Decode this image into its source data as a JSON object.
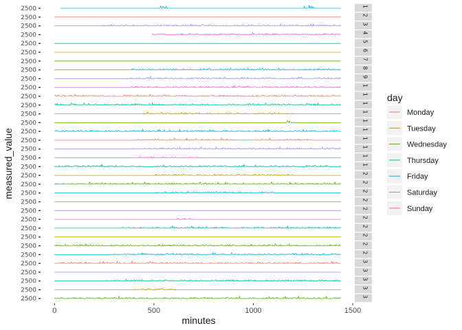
{
  "chart_data": {
    "type": "line",
    "xlabel": "minutes",
    "ylabel": "measured_value",
    "x_ticks": [
      0,
      500,
      1000,
      1500
    ],
    "xlim": [
      -60,
      1500
    ],
    "x_start": 0,
    "x_end": 1440,
    "y_tick_label": "2500",
    "grid": false,
    "facet_strip_labels": [
      "1",
      "2",
      "3",
      "4",
      "5",
      "6",
      "7",
      "8",
      "9",
      "1",
      "1",
      "1",
      "1",
      "1",
      "1",
      "1",
      "1",
      "1",
      "1",
      "2",
      "2",
      "2",
      "2",
      "2",
      "2",
      "2",
      "2",
      "2",
      "2",
      "3",
      "3",
      "3",
      "3",
      "3"
    ],
    "legend": {
      "title": "day",
      "placement": "right",
      "entries": [
        {
          "name": "Monday",
          "color": "#F8766D"
        },
        {
          "name": "Tuesday",
          "color": "#C49A00"
        },
        {
          "name": "Wednesday",
          "color": "#53B400"
        },
        {
          "name": "Thursday",
          "color": "#00C094"
        },
        {
          "name": "Friday",
          "color": "#00B6EB"
        },
        {
          "name": "Saturday",
          "color": "#A58AFF"
        },
        {
          "name": "Sunday",
          "color": "#FB61D7"
        }
      ]
    },
    "panels": [
      {
        "day": "Friday",
        "start": 30,
        "end": 1440,
        "activity": [
          [
            530,
            570,
            2
          ],
          [
            1250,
            1310,
            2
          ]
        ]
      },
      {
        "day": "Monday",
        "start": 0,
        "end": 1440,
        "activity": []
      },
      {
        "day": "Saturday",
        "start": 0,
        "end": 1440,
        "activity": [
          [
            200,
            1440,
            1
          ]
        ]
      },
      {
        "day": "Sunday",
        "start": 490,
        "end": 1440,
        "activity": [
          [
            490,
            1440,
            1
          ]
        ]
      },
      {
        "day": "Thursday",
        "start": 0,
        "end": 1440,
        "activity": []
      },
      {
        "day": "Tuesday",
        "start": 0,
        "end": 1440,
        "activity": []
      },
      {
        "day": "Wednesday",
        "start": 0,
        "end": 1440,
        "activity": []
      },
      {
        "day": "Friday",
        "start": 0,
        "end": 1440,
        "activity": [
          [
            380,
            1440,
            1
          ]
        ]
      },
      {
        "day": "Saturday",
        "start": 0,
        "end": 1440,
        "activity": [
          [
            380,
            1440,
            1
          ]
        ]
      },
      {
        "day": "Sunday",
        "start": 0,
        "end": 1440,
        "activity": [
          [
            380,
            1440,
            1
          ]
        ]
      },
      {
        "day": "Monday",
        "start": 0,
        "end": 1440,
        "activity": [
          [
            0,
            1440,
            1
          ]
        ]
      },
      {
        "day": "Thursday",
        "start": 0,
        "end": 1440,
        "activity": [
          [
            0,
            1440,
            1
          ]
        ]
      },
      {
        "day": "Tuesday",
        "start": 0,
        "end": 1440,
        "activity": [
          [
            440,
            1200,
            1
          ]
        ]
      },
      {
        "day": "Wednesday",
        "start": 0,
        "end": 1440,
        "activity": [
          [
            1170,
            1190,
            3
          ]
        ]
      },
      {
        "day": "Friday",
        "start": 0,
        "end": 1440,
        "activity": [
          [
            0,
            1440,
            1
          ]
        ]
      },
      {
        "day": "Monday",
        "start": 0,
        "end": 1440,
        "activity": [
          [
            420,
            1300,
            1
          ]
        ]
      },
      {
        "day": "Saturday",
        "start": 0,
        "end": 1440,
        "activity": [
          [
            380,
            1440,
            1
          ]
        ]
      },
      {
        "day": "Sunday",
        "start": 0,
        "end": 1440,
        "activity": [
          [
            420,
            720,
            1
          ]
        ]
      },
      {
        "day": "Thursday",
        "start": 0,
        "end": 1440,
        "activity": [
          [
            0,
            1440,
            1
          ]
        ]
      },
      {
        "day": "Tuesday",
        "start": 0,
        "end": 1440,
        "activity": [
          [
            500,
            1200,
            1
          ]
        ]
      },
      {
        "day": "Wednesday",
        "start": 0,
        "end": 1440,
        "activity": [
          [
            0,
            1440,
            1
          ]
        ]
      },
      {
        "day": "Friday",
        "start": 0,
        "end": 1440,
        "activity": [
          [
            500,
            1100,
            1
          ]
        ]
      },
      {
        "day": "Monday",
        "start": 0,
        "end": 1440,
        "activity": []
      },
      {
        "day": "Saturday",
        "start": 0,
        "end": 1440,
        "activity": []
      },
      {
        "day": "Sunday",
        "start": 0,
        "end": 1440,
        "activity": [
          [
            600,
            700,
            1
          ]
        ]
      },
      {
        "day": "Thursday",
        "start": 0,
        "end": 1440,
        "activity": [
          [
            320,
            1440,
            1
          ]
        ]
      },
      {
        "day": "Tuesday",
        "start": 0,
        "end": 1440,
        "activity": []
      },
      {
        "day": "Wednesday",
        "start": 0,
        "end": 1440,
        "activity": [
          [
            0,
            1440,
            1
          ]
        ]
      },
      {
        "day": "Friday",
        "start": 0,
        "end": 1440,
        "activity": [
          [
            300,
            1440,
            1
          ]
        ]
      },
      {
        "day": "Monday",
        "start": 0,
        "end": 1440,
        "activity": [
          [
            0,
            1440,
            1
          ]
        ]
      },
      {
        "day": "Saturday",
        "start": 0,
        "end": 1440,
        "activity": []
      },
      {
        "day": "Thursday",
        "start": 0,
        "end": 1440,
        "activity": [
          [
            260,
            1440,
            1
          ]
        ]
      },
      {
        "day": "Tuesday",
        "start": 0,
        "end": 1440,
        "activity": [
          [
            400,
            600,
            1
          ]
        ]
      },
      {
        "day": "Wednesday",
        "start": 0,
        "end": 1440,
        "activity": [
          [
            0,
            1440,
            1
          ]
        ]
      }
    ]
  }
}
